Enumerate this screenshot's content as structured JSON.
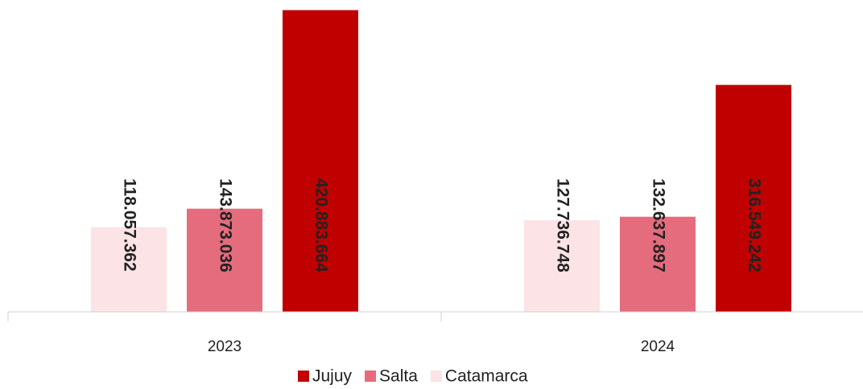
{
  "chart_data": {
    "type": "bar",
    "categories": [
      "2023",
      "2024"
    ],
    "series": [
      {
        "name": "Catamarca",
        "color": "#fbe3e6",
        "values": [
          118057362,
          127736748
        ],
        "value_labels": [
          "118.057.362",
          "127.736.748"
        ]
      },
      {
        "name": "Salta",
        "color": "#e46c7c",
        "values": [
          143873036,
          132637897
        ],
        "value_labels": [
          "143.873.036",
          "132.637.897"
        ]
      },
      {
        "name": "Jujuy",
        "color": "#c00000",
        "values": [
          420883664,
          316549242
        ],
        "value_labels": [
          "420.883.664",
          "316.549.242"
        ]
      }
    ],
    "ylim": [
      0,
      435000000
    ],
    "legend": "bottom"
  }
}
